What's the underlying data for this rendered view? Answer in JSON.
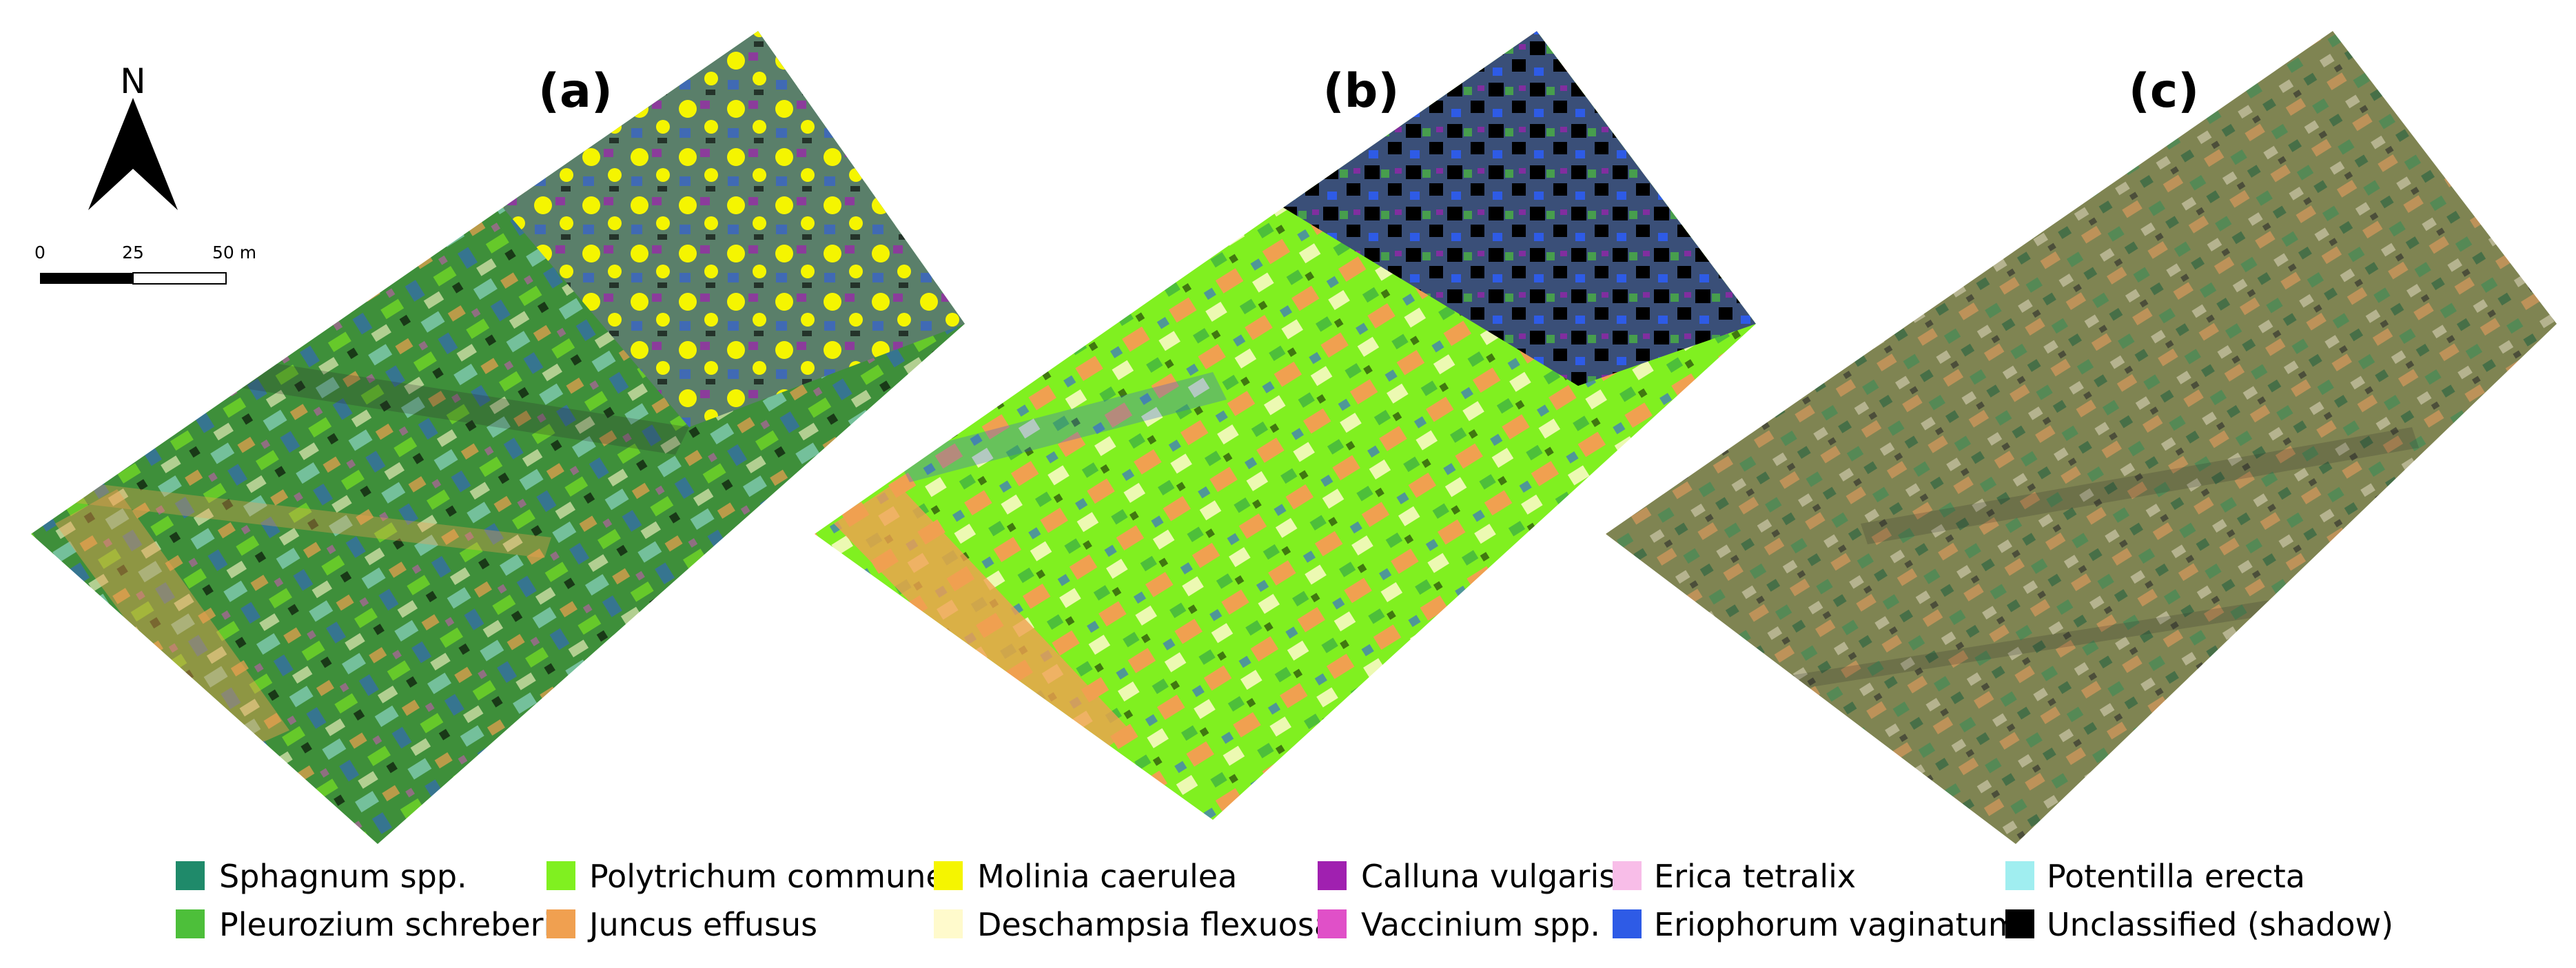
{
  "panels": [
    {
      "id": "a",
      "label": "(a)"
    },
    {
      "id": "b",
      "label": "(b)"
    },
    {
      "id": "c",
      "label": "(c)"
    }
  ],
  "north_arrow": {
    "label": "N"
  },
  "scale_bar": {
    "ticks": [
      "0",
      "25",
      "50 m"
    ]
  },
  "legend": [
    {
      "name": "Sphagnum spp.",
      "color": "#1f8a6a"
    },
    {
      "name": "Pleurozium schreberi",
      "color": "#4dbf3a"
    },
    {
      "name": "Polytrichum commune",
      "color": "#80f020"
    },
    {
      "name": "Juncus effusus",
      "color": "#f0a050"
    },
    {
      "name": "Molinia caerulea",
      "color": "#f5f500"
    },
    {
      "name": "Deschampsia flexuosa",
      "color": "#fffacc"
    },
    {
      "name": "Calluna vulgaris",
      "color": "#a020b0"
    },
    {
      "name": "Vaccinium spp.",
      "color": "#e050c8"
    },
    {
      "name": "Erica tetralix",
      "color": "#f8bde8"
    },
    {
      "name": "Eriophorum vaginatum",
      "color": "#2e5be6"
    },
    {
      "name": "Potentilla erecta",
      "color": "#a0eef0"
    },
    {
      "name": "Unclassified (shadow)",
      "color": "#000000"
    }
  ]
}
